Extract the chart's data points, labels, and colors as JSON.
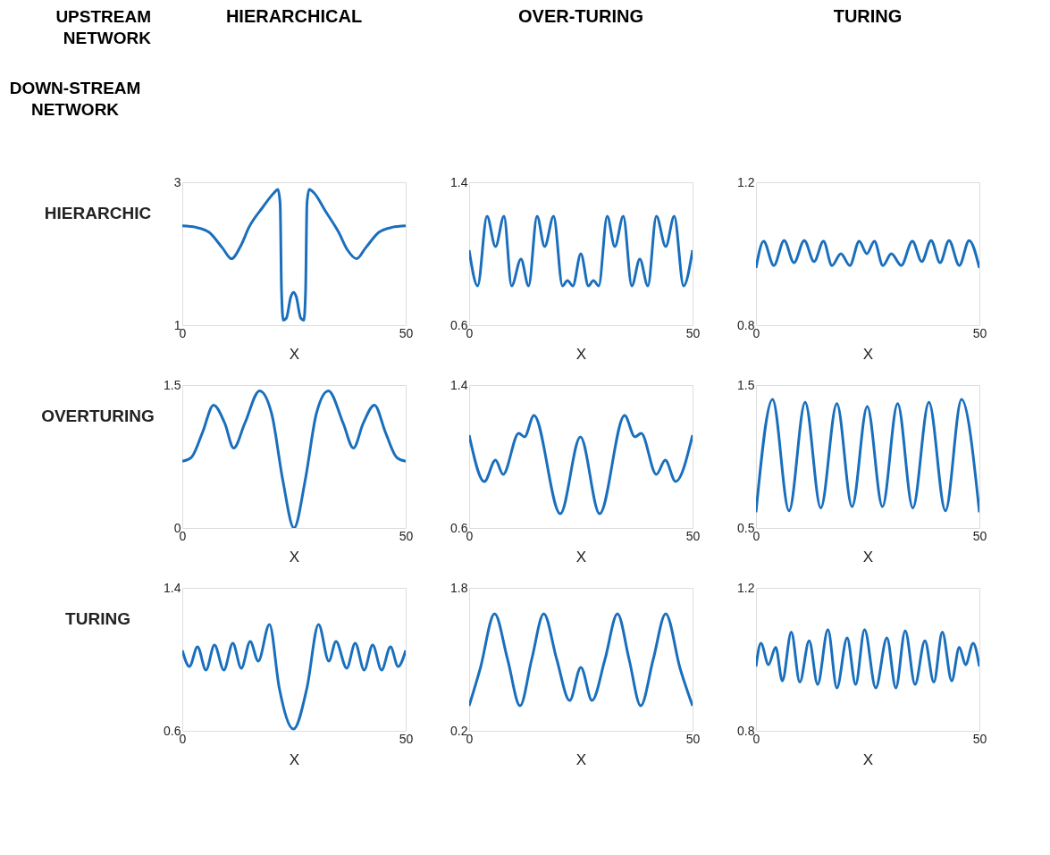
{
  "chart_data": [
    {
      "type": "line",
      "title": "HIERARCHICAL",
      "ylabel": "HIERARCHIC",
      "xlabel": "X",
      "annotations": [
        "UPSTREAM NETWORK",
        "DOWN-STREAM NETWORK"
      ],
      "x": [
        0,
        3,
        6,
        9,
        11,
        13,
        15,
        18,
        20.5,
        21.4,
        21.9,
        22.2,
        22.6,
        23.3,
        24.3,
        24.9,
        25.5,
        26.5,
        27.2,
        27.6,
        27.9,
        28.4,
        29.5,
        32,
        35,
        37,
        39,
        41,
        44,
        47,
        50
      ],
      "series": [
        {
          "color": "#1a6fbd",
          "values": [
            2.39,
            2.37,
            2.3,
            2.08,
            1.93,
            2.1,
            2.38,
            2.65,
            2.85,
            2.9,
            2.7,
            1.5,
            1.07,
            1.1,
            1.4,
            1.46,
            1.4,
            1.1,
            1.07,
            1.5,
            2.7,
            2.9,
            2.85,
            2.6,
            2.3,
            2.05,
            1.93,
            2.08,
            2.3,
            2.37,
            2.39
          ]
        }
      ],
      "xlim": [
        0,
        50
      ],
      "ylim": [
        1,
        3
      ],
      "xticks": [
        0,
        50
      ],
      "yticks": [
        1,
        3
      ],
      "grid": false
    },
    {
      "type": "line",
      "title": "OVER-TURING",
      "xlabel": "X",
      "x": [
        0,
        1.9,
        4,
        5.9,
        7.8,
        9.5,
        11.6,
        13.3,
        15.2,
        16.9,
        18.9,
        20.9,
        22,
        23.2,
        25,
        26.7,
        27.8,
        29,
        30.9,
        32.6,
        34.5,
        36.4,
        38.2,
        40,
        41.9,
        44,
        45.9,
        48,
        50
      ],
      "series": [
        {
          "color": "#1a6fbd",
          "values": [
            1.02,
            0.82,
            1.21,
            1.04,
            1.21,
            0.82,
            0.97,
            0.82,
            1.21,
            1.04,
            1.21,
            0.82,
            0.85,
            0.82,
            1.0,
            0.82,
            0.85,
            0.82,
            1.21,
            1.04,
            1.21,
            0.82,
            0.97,
            0.82,
            1.21,
            1.04,
            1.21,
            0.82,
            1.02
          ]
        }
      ],
      "xlim": [
        0,
        50
      ],
      "ylim": [
        0.6,
        1.4
      ],
      "xticks": [
        0,
        50
      ],
      "yticks": [
        0.6,
        1.4
      ],
      "grid": false
    },
    {
      "type": "line",
      "title": "TURING",
      "xlabel": "X",
      "x": [
        0,
        1.7,
        4,
        6.3,
        8.5,
        10.8,
        13,
        15.1,
        17,
        19,
        21,
        23.1,
        24.8,
        26.5,
        28.4,
        30.3,
        32.5,
        35,
        37.1,
        39.2,
        41.2,
        43.2,
        45.5,
        47.7,
        50
      ],
      "series": [
        {
          "color": "#1a6fbd",
          "values": [
            0.96,
            1.035,
            0.967,
            1.037,
            0.975,
            1.037,
            0.978,
            1.035,
            0.967,
            1.0,
            0.967,
            1.035,
            1.0,
            1.035,
            0.967,
            1.0,
            0.967,
            1.035,
            0.978,
            1.037,
            0.975,
            1.037,
            0.967,
            1.037,
            0.96
          ]
        }
      ],
      "xlim": [
        0,
        50
      ],
      "ylim": [
        0.8,
        1.2
      ],
      "xticks": [
        0,
        50
      ],
      "yticks": [
        0.8,
        1.2
      ],
      "grid": false
    },
    {
      "type": "line",
      "ylabel": "OVERTURING",
      "xlabel": "X",
      "x": [
        0,
        2,
        4.5,
        7,
        9.5,
        11.5,
        14,
        17.3,
        20,
        22.5,
        25,
        27.5,
        30,
        32.7,
        36,
        38.3,
        40.5,
        43,
        45.5,
        48,
        50
      ],
      "series": [
        {
          "color": "#1a6fbd",
          "values": [
            0.7,
            0.74,
            1.0,
            1.29,
            1.1,
            0.84,
            1.1,
            1.44,
            1.2,
            0.5,
            0,
            0.5,
            1.2,
            1.44,
            1.1,
            0.84,
            1.1,
            1.29,
            1.0,
            0.74,
            0.7
          ]
        }
      ],
      "xlim": [
        0,
        50
      ],
      "ylim": [
        0,
        1.5
      ],
      "xticks": [
        0,
        50
      ],
      "yticks": [
        0,
        1.5
      ],
      "grid": false
    },
    {
      "type": "line",
      "xlabel": "X",
      "x": [
        0,
        3.4,
        5.9,
        7.6,
        11.1,
        12.4,
        14.5,
        20.4,
        24.9,
        29.2,
        34.8,
        37.1,
        38.5,
        41.9,
        43.9,
        46.2,
        50
      ],
      "series": [
        {
          "color": "#1a6fbd",
          "values": [
            1.12,
            0.86,
            0.98,
            0.9,
            1.13,
            1.11,
            1.23,
            0.68,
            1.11,
            0.68,
            1.23,
            1.11,
            1.13,
            0.9,
            0.98,
            0.86,
            1.12
          ]
        }
      ],
      "xlim": [
        0,
        50
      ],
      "ylim": [
        0.6,
        1.4
      ],
      "xticks": [
        0,
        50
      ],
      "yticks": [
        0.6,
        1.4
      ],
      "grid": false
    },
    {
      "type": "line",
      "xlabel": "X",
      "x": [
        0,
        3.7,
        7.4,
        11,
        14.5,
        18.1,
        21.5,
        24.9,
        28.3,
        31.7,
        35.1,
        38.7,
        42.4,
        46,
        50
      ],
      "series": [
        {
          "color": "#1a6fbd",
          "values": [
            0.61,
            1.4,
            0.62,
            1.38,
            0.64,
            1.37,
            0.65,
            1.35,
            0.65,
            1.37,
            0.64,
            1.38,
            0.62,
            1.4,
            0.61
          ]
        }
      ],
      "xlim": [
        0,
        50
      ],
      "ylim": [
        0.5,
        1.5
      ],
      "xticks": [
        0,
        50
      ],
      "yticks": [
        0.5,
        1.5
      ],
      "grid": false
    },
    {
      "type": "line",
      "ylabel": "TURING",
      "xlabel": "X",
      "x": [
        0,
        1.6,
        3.4,
        5.3,
        7.2,
        9.3,
        11.3,
        13.2,
        15.2,
        17,
        19.5,
        21.7,
        24.9,
        27.9,
        30.5,
        32.8,
        34.4,
        36.8,
        38.7,
        40.7,
        42.6,
        44.6,
        46.6,
        48.3,
        50
      ],
      "series": [
        {
          "color": "#1a6fbd",
          "values": [
            1.05,
            0.96,
            1.07,
            0.94,
            1.08,
            0.94,
            1.09,
            0.95,
            1.1,
            0.99,
            1.195,
            0.84,
            0.61,
            0.84,
            1.195,
            0.99,
            1.1,
            0.95,
            1.09,
            0.94,
            1.08,
            0.94,
            1.07,
            0.96,
            1.05
          ]
        }
      ],
      "xlim": [
        0,
        50
      ],
      "ylim": [
        0.6,
        1.4
      ],
      "xticks": [
        0,
        50
      ],
      "yticks": [
        0.6,
        1.4
      ],
      "grid": false
    },
    {
      "type": "line",
      "xlabel": "X",
      "x": [
        0,
        2.5,
        5.7,
        8.6,
        11.4,
        14,
        16.7,
        19.6,
        22.5,
        25,
        27.5,
        30.4,
        33.2,
        35.8,
        38.4,
        41.2,
        44,
        47.2,
        50
      ],
      "series": [
        {
          "color": "#1a6fbd",
          "values": [
            0.48,
            0.9,
            1.51,
            1.0,
            0.48,
            1.0,
            1.51,
            1.0,
            0.54,
            0.91,
            0.54,
            1.0,
            1.51,
            1.0,
            0.48,
            1.0,
            1.51,
            0.9,
            0.48
          ]
        }
      ],
      "xlim": [
        0,
        50
      ],
      "ylim": [
        0.2,
        1.8
      ],
      "xticks": [
        0,
        50
      ],
      "yticks": [
        0.2,
        1.8
      ],
      "grid": false
    },
    {
      "type": "line",
      "xlabel": "X",
      "x": [
        0,
        1.1,
        2.8,
        4.4,
        5.9,
        7.9,
        9.8,
        11.9,
        13.8,
        16.1,
        18.1,
        20.4,
        22.3,
        24.3,
        26.8,
        29.3,
        31.3,
        33.4,
        35.6,
        37.8,
        39.8,
        41.7,
        43.8,
        45.5,
        46.9,
        48.6,
        50
      ],
      "series": [
        {
          "color": "#1a6fbd",
          "values": [
            0.98,
            1.045,
            0.985,
            1.034,
            0.94,
            1.076,
            0.936,
            1.052,
            0.93,
            1.083,
            0.92,
            1.06,
            0.93,
            1.083,
            0.92,
            1.06,
            0.92,
            1.08,
            0.93,
            1.052,
            0.936,
            1.076,
            0.94,
            1.034,
            0.985,
            1.045,
            0.98
          ]
        }
      ],
      "xlim": [
        0,
        50
      ],
      "ylim": [
        0.8,
        1.2
      ],
      "xticks": [
        0,
        50
      ],
      "yticks": [
        0.8,
        1.2
      ],
      "grid": false
    }
  ]
}
